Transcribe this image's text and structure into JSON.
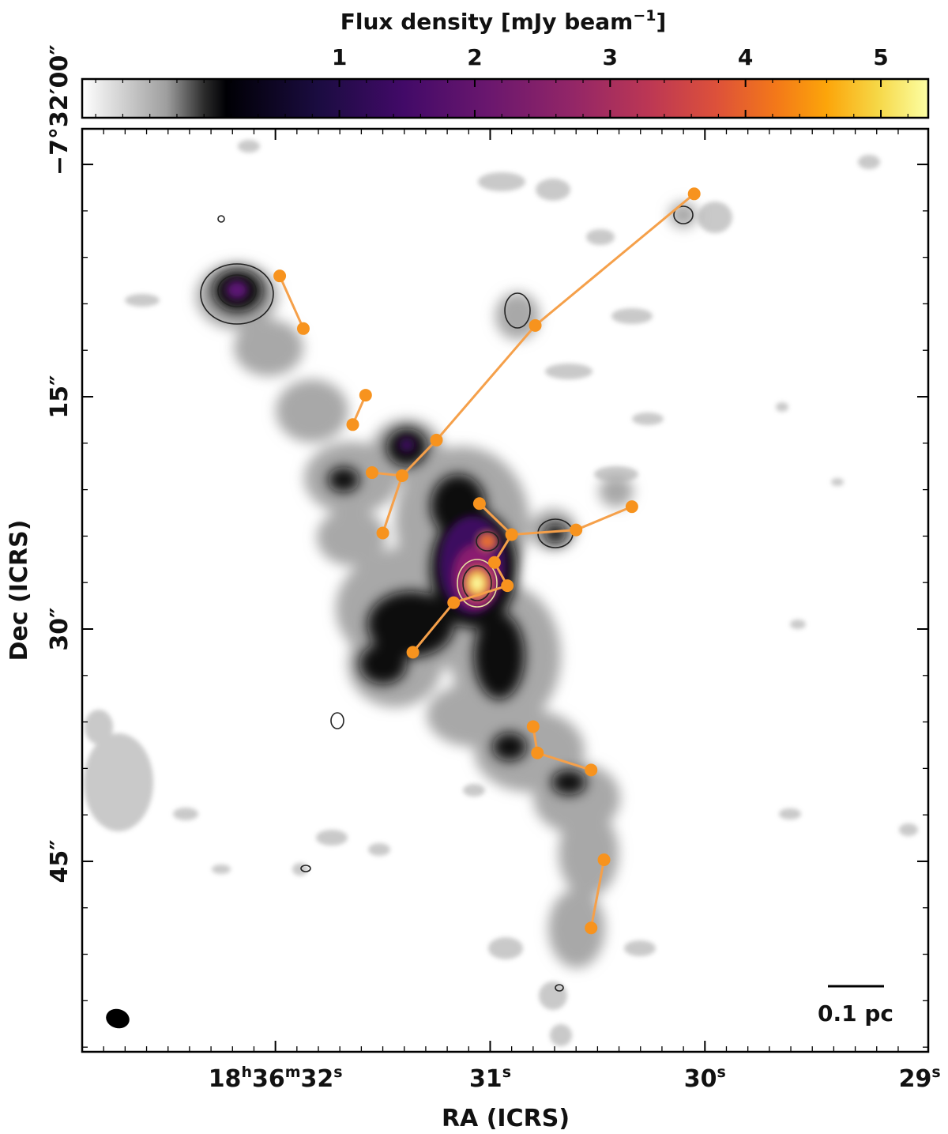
{
  "chart_data": {
    "type": "scatter",
    "title": "",
    "colorbar": {
      "label": "Flux density [mJy beam⁻¹]",
      "label_main": "Flux density [mJy beam",
      "label_exp": "−1",
      "label_close": "]",
      "colormap": "gray-to-inferno",
      "range": [
        -0.9,
        5.35
      ],
      "ticks": [
        1,
        2,
        3,
        4,
        5
      ],
      "tick_labels": [
        "1",
        "2",
        "3",
        "4",
        "5"
      ]
    },
    "xlabel": "RA (ICRS)",
    "ylabel": "Dec (ICRS)",
    "xlim_s": [
      32.9,
      28.96
    ],
    "ylim_arcsec": [
      -57.3,
      2.3
    ],
    "x_ticks": [
      {
        "value": 32,
        "pre": "18",
        "h": "h",
        "mid": "36",
        "m": "m",
        "main": "32",
        "s": "s"
      },
      {
        "value": 31,
        "pre": "",
        "h": "",
        "mid": "",
        "m": "",
        "main": "31",
        "s": "s"
      },
      {
        "value": 30,
        "pre": "",
        "h": "",
        "mid": "",
        "m": "",
        "main": "30",
        "s": "s"
      },
      {
        "value": 29,
        "pre": "",
        "h": "",
        "mid": "",
        "m": "",
        "main": "29",
        "s": "s"
      }
    ],
    "y_ticks": [
      {
        "value": 0,
        "label": "−7°32′00″"
      },
      {
        "value": -15,
        "label": "15″"
      },
      {
        "value": -30,
        "label": "30″"
      },
      {
        "value": -45,
        "label": "45″"
      }
    ],
    "scale_bar_label": "0.1 pc",
    "marker_color": "#f7931e",
    "line_color": "#f5a04a",
    "cores": [
      {
        "id": 1,
        "ra": 31.98,
        "dec": -7.2
      },
      {
        "id": 2,
        "ra": 31.87,
        "dec": -10.6
      },
      {
        "id": 3,
        "ra": 31.58,
        "dec": -14.9
      },
      {
        "id": 4,
        "ra": 31.64,
        "dec": -16.8
      },
      {
        "id": 5,
        "ra": 31.25,
        "dec": -17.8
      },
      {
        "id": 6,
        "ra": 31.55,
        "dec": -19.9
      },
      {
        "id": 7,
        "ra": 31.41,
        "dec": -20.1
      },
      {
        "id": 8,
        "ra": 31.05,
        "dec": -21.9
      },
      {
        "id": 9,
        "ra": 31.5,
        "dec": -23.8
      },
      {
        "id": 10,
        "ra": 30.34,
        "dec": -22.1
      },
      {
        "id": 11,
        "ra": 30.6,
        "dec": -23.6
      },
      {
        "id": 12,
        "ra": 30.9,
        "dec": -23.9
      },
      {
        "id": 13,
        "ra": 30.98,
        "dec": -25.7
      },
      {
        "id": 14,
        "ra": 30.92,
        "dec": -27.2
      },
      {
        "id": 15,
        "ra": 31.17,
        "dec": -28.3
      },
      {
        "id": 16,
        "ra": 31.36,
        "dec": -31.5
      },
      {
        "id": 17,
        "ra": 30.8,
        "dec": -36.3
      },
      {
        "id": 18,
        "ra": 30.78,
        "dec": -38.0
      },
      {
        "id": 19,
        "ra": 30.53,
        "dec": -39.1
      },
      {
        "id": 20,
        "ra": 30.47,
        "dec": -44.9
      },
      {
        "id": 21,
        "ra": 30.53,
        "dec": -49.3
      },
      {
        "id": 22,
        "ra": 30.05,
        "dec": -1.9
      },
      {
        "id": 23,
        "ra": 30.79,
        "dec": -10.4
      }
    ],
    "links": [
      [
        1,
        2
      ],
      [
        3,
        4
      ],
      [
        6,
        7
      ],
      [
        7,
        5
      ],
      [
        7,
        9
      ],
      [
        5,
        23
      ],
      [
        23,
        22
      ],
      [
        8,
        12
      ],
      [
        12,
        11
      ],
      [
        11,
        10
      ],
      [
        12,
        13
      ],
      [
        13,
        14
      ],
      [
        14,
        15
      ],
      [
        15,
        16
      ],
      [
        17,
        18
      ],
      [
        18,
        19
      ],
      [
        20,
        21
      ]
    ]
  }
}
